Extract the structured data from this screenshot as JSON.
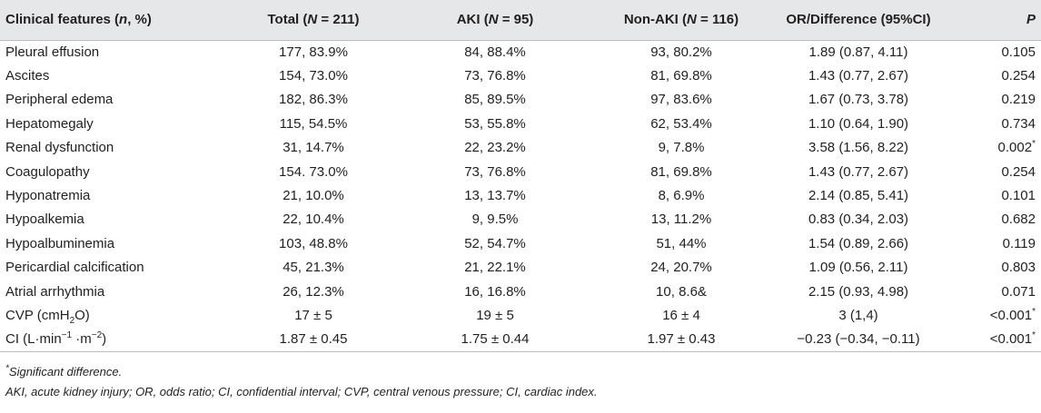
{
  "headers": [
    {
      "pre": "Clinical features (",
      "ital": "n",
      "post": ", %)"
    },
    {
      "pre": "Total (",
      "ital": "N",
      "post": " = 211)"
    },
    {
      "pre": "AKI (",
      "ital": "N",
      "post": " = 95)"
    },
    {
      "pre": "Non-AKI (",
      "ital": "N",
      "post": " = 116)"
    },
    {
      "pre": "OR/Difference (95%CI)",
      "ital": "",
      "post": ""
    },
    {
      "pre": "",
      "ital": "P",
      "post": ""
    }
  ],
  "rows": [
    {
      "feature": "Pleural effusion",
      "total": "177, 83.9%",
      "aki": "84, 88.4%",
      "nonaki": "93, 80.2%",
      "or": "1.89 (0.87, 4.11)",
      "p": "0.105"
    },
    {
      "feature": "Ascites",
      "total": "154, 73.0%",
      "aki": "73, 76.8%",
      "nonaki": "81, 69.8%",
      "or": "1.43 (0.77, 2.67)",
      "p": "0.254"
    },
    {
      "feature": "Peripheral edema",
      "total": "182, 86.3%",
      "aki": "85, 89.5%",
      "nonaki": "97, 83.6%",
      "or": "1.67 (0.73, 3.78)",
      "p": "0.219"
    },
    {
      "feature": "Hepatomegaly",
      "total": "115, 54.5%",
      "aki": "53, 55.8%",
      "nonaki": "62, 53.4%",
      "or": "1.10 (0.64, 1.90)",
      "p": "0.734"
    },
    {
      "feature": "Renal dysfunction",
      "total": "31, 14.7%",
      "aki": "22, 23.2%",
      "nonaki": "9, 7.8%",
      "or": "3.58 (1.56, 8.22)",
      "p": "0.002",
      "p_mark": "*"
    },
    {
      "feature": "Coagulopathy",
      "total": "154. 73.0%",
      "aki": "73, 76.8%",
      "nonaki": "81, 69.8%",
      "or": "1.43 (0.77, 2.67)",
      "p": "0.254"
    },
    {
      "feature": "Hyponatremia",
      "total": "21, 10.0%",
      "aki": "13, 13.7%",
      "nonaki": "8, 6.9%",
      "or": "2.14 (0.85, 5.41)",
      "p": "0.101"
    },
    {
      "feature": "Hypoalkemia",
      "total": "22, 10.4%",
      "aki": "9, 9.5%",
      "nonaki": "13, 11.2%",
      "or": "0.83 (0.34, 2.03)",
      "p": "0.682"
    },
    {
      "feature": "Hypoalbuminemia",
      "total": "103, 48.8%",
      "aki": "52, 54.7%",
      "nonaki": "51, 44%",
      "or": "1.54 (0.89, 2.66)",
      "p": "0.119"
    },
    {
      "feature": "Pericardial calcification",
      "total": "45, 21.3%",
      "aki": "21, 22.1%",
      "nonaki": "24, 20.7%",
      "or": "1.09 (0.56, 2.11)",
      "p": "0.803"
    },
    {
      "feature": "Atrial arrhythmia",
      "total": "26, 12.3%",
      "aki": "16, 16.8%",
      "nonaki": "10, 8.6&",
      "or": "2.15 (0.93, 4.98)",
      "p": "0.071"
    },
    {
      "feature": "CVP (cmH",
      "feature_sub": "2",
      "feature_post": "O)",
      "total": "17 ± 5",
      "aki": "19 ± 5",
      "nonaki": "16 ± 4",
      "or": "3 (1,4)",
      "p": "<0.001",
      "p_mark": "*"
    },
    {
      "feature": "CI (L·min",
      "feature_sup": "−1",
      "feature_mid": " ·m",
      "feature_sup2": "−2",
      "feature_post": ")",
      "total": "1.87 ± 0.45",
      "aki": "1.75 ± 0.44",
      "nonaki": "1.97 ± 0.43",
      "or": "−0.23 (−0.34, −0.11)",
      "p": "<0.001",
      "p_mark": "*"
    }
  ],
  "footnotes": {
    "mark": "*",
    "significant": "Significant difference.",
    "abbreviations": "AKI, acute kidney injury; OR, odds ratio; CI, confidential interval; CVP, central venous pressure; CI, cardiac index."
  }
}
